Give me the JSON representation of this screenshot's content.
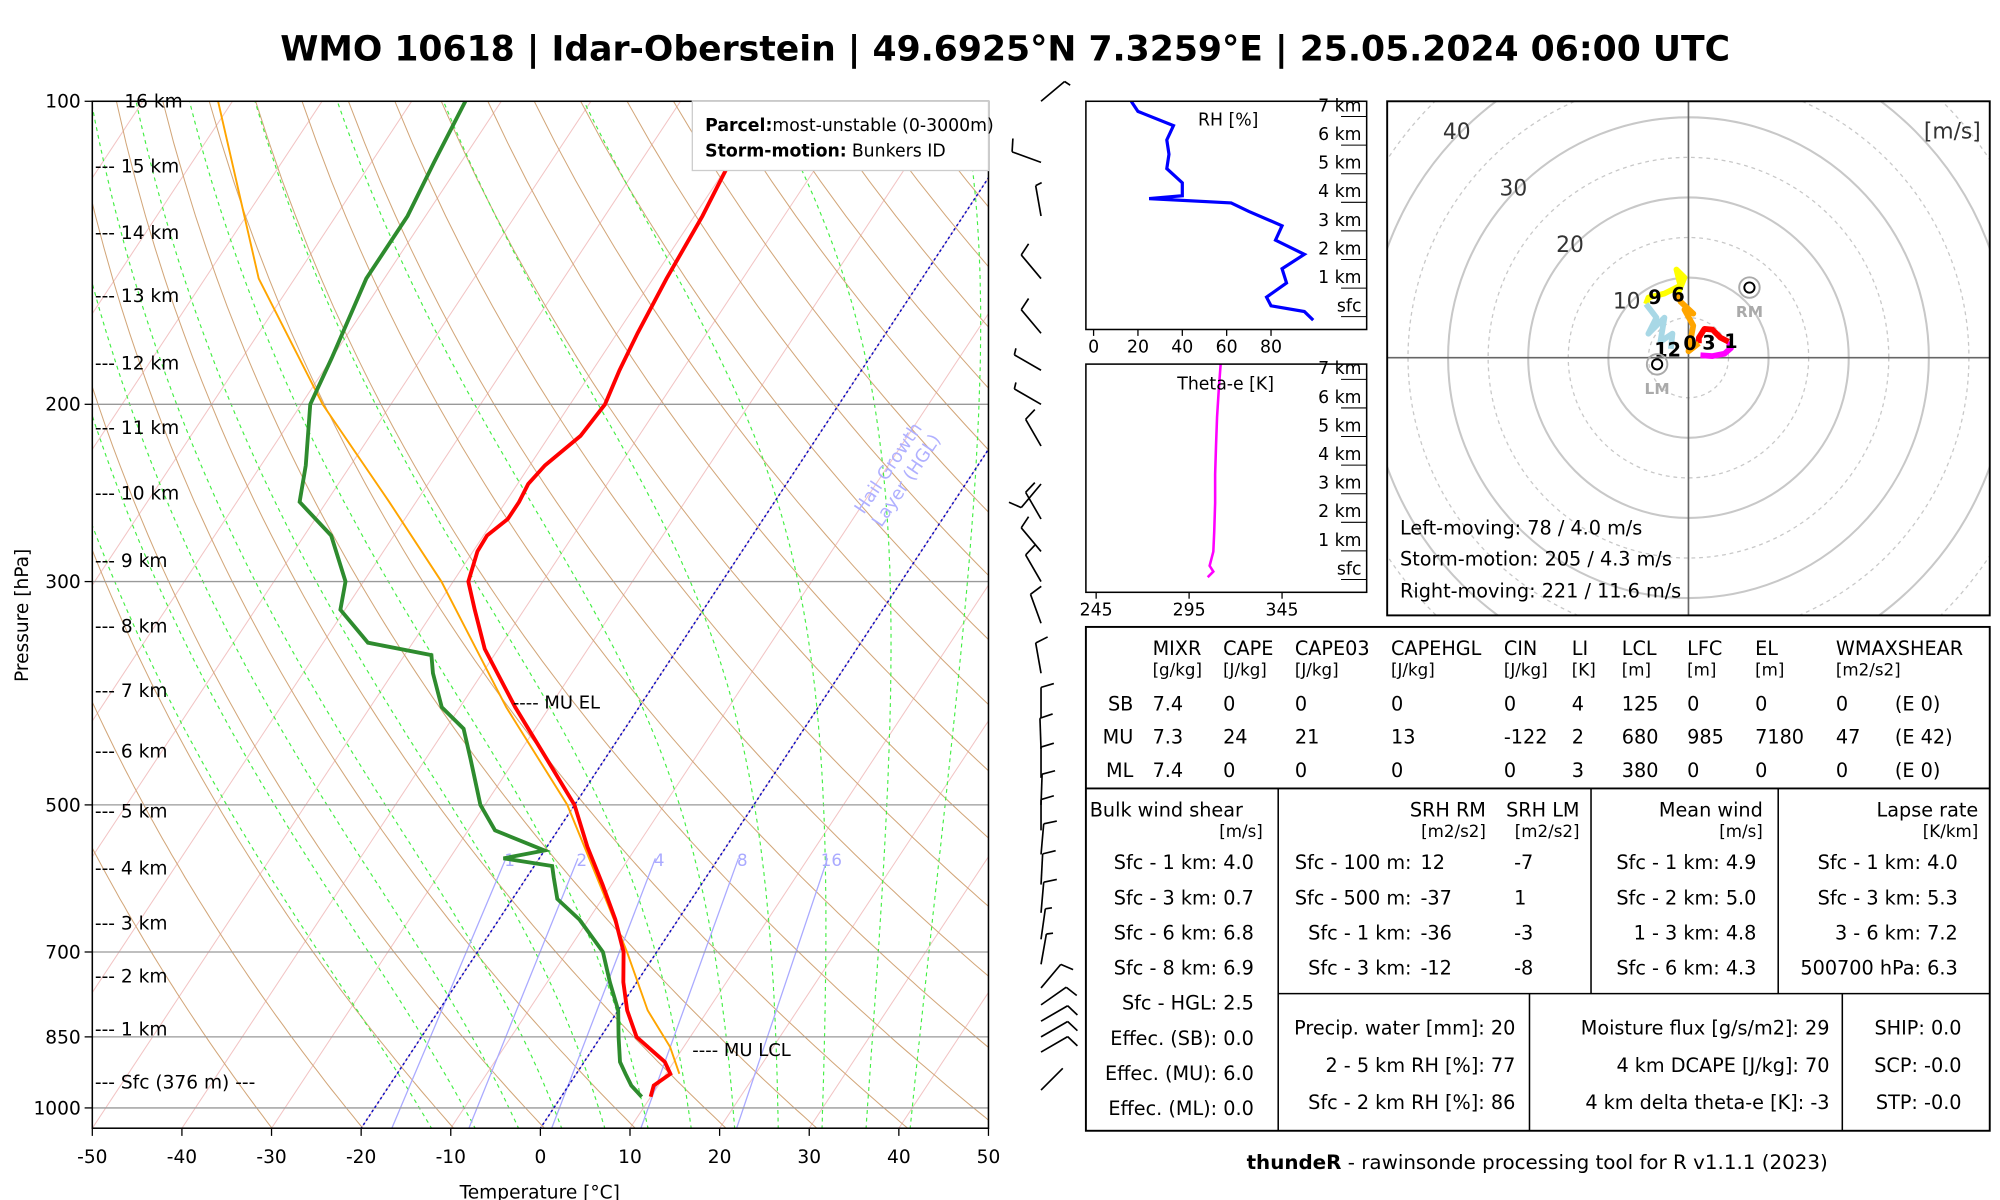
{
  "title": "WMO 10618 | Idar-Oberstein | 49.6925°N 7.3259°E | 25.05.2024 06:00 UTC",
  "footer": {
    "bold": "thundeR",
    "rest": " - rawinsonde processing tool for R v1.1.1 (2023)"
  },
  "colors": {
    "temperature": "#ff0000",
    "dewpoint": "#2e8b2e",
    "parcel": "#ffa500",
    "hgl": "#1010c0",
    "mixing": "#aaaaff",
    "dry": "#d2a679",
    "moist": "#44ee44",
    "iso": "#f2c4c4"
  },
  "chart_data": [
    {
      "type": "line",
      "name": "skew-t",
      "xlabel": "Temperature [°C]",
      "ylabel": "Pressure [hPa]",
      "xlim": [
        -50,
        50
      ],
      "ylim": [
        1048,
        100
      ],
      "x_ticks": [
        "-50",
        "-40",
        "-30",
        "-20",
        "-10",
        "0",
        "10",
        "20",
        "30",
        "40",
        "50"
      ],
      "y_ticks": [
        "100",
        "200",
        "300",
        "500",
        "700",
        "850",
        "1000"
      ],
      "height_labels": [
        {
          "p": 100,
          "text": "16 km"
        },
        {
          "p": 116,
          "text": "--- 15 km"
        },
        {
          "p": 135,
          "text": "--- 14 km"
        },
        {
          "p": 156,
          "text": "--- 13 km"
        },
        {
          "p": 182,
          "text": "--- 12 km"
        },
        {
          "p": 211,
          "text": "--- 11 km"
        },
        {
          "p": 245,
          "text": "--- 10 km"
        },
        {
          "p": 286,
          "text": "--- 9 km"
        },
        {
          "p": 332,
          "text": "--- 8 km"
        },
        {
          "p": 385,
          "text": "--- 7 km"
        },
        {
          "p": 442,
          "text": "--- 6 km"
        },
        {
          "p": 507,
          "text": "--- 5 km"
        },
        {
          "p": 578,
          "text": "--- 4 km"
        },
        {
          "p": 655,
          "text": "--- 3 km"
        },
        {
          "p": 740,
          "text": "--- 2 km"
        },
        {
          "p": 835,
          "text": "--- 1 km"
        },
        {
          "p": 943,
          "text": "--- Sfc (376 m) ---"
        }
      ],
      "temperature": [
        [
          975,
          10
        ],
        [
          950,
          9.5
        ],
        [
          925,
          10.5
        ],
        [
          900,
          9
        ],
        [
          850,
          4
        ],
        [
          800,
          1
        ],
        [
          750,
          -1.5
        ],
        [
          700,
          -3.7
        ],
        [
          650,
          -7
        ],
        [
          600,
          -11
        ],
        [
          550,
          -15.5
        ],
        [
          500,
          -20
        ],
        [
          450,
          -26.5
        ],
        [
          400,
          -33.8
        ],
        [
          350,
          -41.5
        ],
        [
          320,
          -45.5
        ],
        [
          300,
          -48.3
        ],
        [
          280,
          -49.5
        ],
        [
          270,
          -49.6
        ],
        [
          260,
          -48.5
        ],
        [
          250,
          -48.5
        ],
        [
          240,
          -48.8
        ],
        [
          230,
          -48.3
        ],
        [
          215,
          -46.5
        ],
        [
          200,
          -46.1
        ],
        [
          185,
          -47
        ],
        [
          170,
          -47.7
        ],
        [
          150,
          -48.5
        ],
        [
          130,
          -49.1
        ],
        [
          115,
          -50
        ],
        [
          100,
          -50.6
        ]
      ],
      "dewpoint": [
        [
          975,
          9
        ],
        [
          950,
          7
        ],
        [
          925,
          5.5
        ],
        [
          900,
          4
        ],
        [
          850,
          2
        ],
        [
          800,
          0
        ],
        [
          750,
          -3
        ],
        [
          700,
          -6
        ],
        [
          650,
          -11
        ],
        [
          620,
          -15
        ],
        [
          590,
          -17
        ],
        [
          575,
          -18
        ],
        [
          565,
          -24
        ],
        [
          555,
          -20
        ],
        [
          530,
          -27
        ],
        [
          500,
          -30.5
        ],
        [
          450,
          -35
        ],
        [
          420,
          -38
        ],
        [
          400,
          -42
        ],
        [
          370,
          -45.5
        ],
        [
          355,
          -47
        ],
        [
          345,
          -55
        ],
        [
          320,
          -60.5
        ],
        [
          300,
          -62
        ],
        [
          270,
          -67
        ],
        [
          250,
          -73
        ],
        [
          230,
          -75
        ],
        [
          200,
          -79
        ],
        [
          180,
          -80
        ],
        [
          150,
          -82
        ],
        [
          130,
          -82
        ],
        [
          115,
          -83
        ],
        [
          100,
          -84
        ]
      ],
      "parcel": [
        [
          925,
          11.5
        ],
        [
          870,
          8.5
        ],
        [
          800,
          3.3
        ],
        [
          700,
          -3.3
        ],
        [
          600,
          -11.3
        ],
        [
          500,
          -20.8
        ],
        [
          400,
          -34.8
        ],
        [
          300,
          -51.3
        ],
        [
          250,
          -63
        ],
        [
          200,
          -77.6
        ],
        [
          150,
          -94
        ],
        [
          100,
          -111.6
        ]
      ],
      "mixing_ratio_labels": [
        "1",
        "2",
        "4",
        "8",
        "16"
      ],
      "hgl_isotherms": [
        0,
        -20
      ],
      "hgl_label": [
        "Hail Growth",
        "Layer (HGL)"
      ],
      "annotations": [
        {
          "p": 395,
          "text": "---- MU EL"
        },
        {
          "p": 875,
          "text": "---- MU LCL"
        }
      ],
      "legend": {
        "parcel_label": "Parcel:",
        "parcel_value": "most-unstable (0-3000m)",
        "storm_label": "Storm-motion:",
        "storm_value": "Bunkers ID"
      },
      "wind_barbs": [
        [
          100,
          50,
          5
        ],
        [
          115,
          290,
          10
        ],
        [
          130,
          350,
          5
        ],
        [
          150,
          320,
          10
        ],
        [
          170,
          320,
          10
        ],
        [
          185,
          300,
          5
        ],
        [
          200,
          300,
          5
        ],
        [
          220,
          330,
          10
        ],
        [
          240,
          220,
          10
        ],
        [
          260,
          330,
          10
        ],
        [
          280,
          320,
          10
        ],
        [
          300,
          330,
          10
        ],
        [
          330,
          340,
          10
        ],
        [
          370,
          350,
          10
        ],
        [
          410,
          0,
          10
        ],
        [
          440,
          358,
          10
        ],
        [
          470,
          0,
          10
        ],
        [
          500,
          2,
          10
        ],
        [
          530,
          0,
          10
        ],
        [
          560,
          5,
          10
        ],
        [
          600,
          3,
          10
        ],
        [
          640,
          5,
          10
        ],
        [
          680,
          8,
          5
        ],
        [
          720,
          10,
          5
        ],
        [
          760,
          40,
          10
        ],
        [
          790,
          55,
          10
        ],
        [
          820,
          60,
          10
        ],
        [
          850,
          60,
          10
        ],
        [
          880,
          60,
          10
        ],
        [
          960,
          45,
          2
        ]
      ]
    },
    {
      "type": "line",
      "name": "rh-profile",
      "title": "RH [%]",
      "x_ticks": [
        "0",
        "20",
        "40",
        "60",
        "80"
      ],
      "height_ticks": [
        "7 km",
        "6 km",
        "5 km",
        "4 km",
        "3 km",
        "2 km",
        "1 km",
        "sfc"
      ],
      "points": [
        [
          7.35,
          17
        ],
        [
          7.0,
          20
        ],
        [
          6.5,
          36
        ],
        [
          6.0,
          33
        ],
        [
          5.5,
          34
        ],
        [
          5.0,
          33
        ],
        [
          4.5,
          40
        ],
        [
          4.05,
          40
        ],
        [
          3.95,
          25
        ],
        [
          3.8,
          62
        ],
        [
          3.5,
          70
        ],
        [
          3.0,
          85
        ],
        [
          2.5,
          82
        ],
        [
          2.0,
          95
        ],
        [
          1.5,
          85
        ],
        [
          1.0,
          87
        ],
        [
          0.5,
          78
        ],
        [
          0.2,
          80
        ],
        [
          0,
          95
        ],
        [
          -0.3,
          99
        ]
      ]
    },
    {
      "type": "line",
      "name": "theta-e-profile",
      "title": "Theta-e [K]",
      "x_ticks": [
        "245",
        "295",
        "345"
      ],
      "height_ticks": [
        "7 km",
        "6 km",
        "5 km",
        "4 km",
        "3 km",
        "2 km",
        "1 km",
        "sfc"
      ],
      "points": [
        [
          7.35,
          312
        ],
        [
          6.5,
          311
        ],
        [
          5.5,
          310
        ],
        [
          4.5,
          309.5
        ],
        [
          3.5,
          309
        ],
        [
          2.5,
          309
        ],
        [
          1.5,
          308.5
        ],
        [
          0.8,
          308
        ],
        [
          0.3,
          306
        ],
        [
          0.1,
          308
        ],
        [
          -0.1,
          305
        ]
      ]
    },
    {
      "type": "line",
      "name": "hodograph",
      "unit_label": "[m/s]",
      "ring_labels": [
        "10",
        "20",
        "30",
        "40"
      ],
      "segments": [
        {
          "color": "#ff00ff",
          "uv": [
            [
              1.5,
              0.3
            ],
            [
              3,
              0.2
            ],
            [
              4.5,
              0.5
            ],
            [
              5.3,
              1.2
            ],
            [
              5,
              2
            ]
          ]
        },
        {
          "color": "#ff0000",
          "uv": [
            [
              5,
              2
            ],
            [
              4,
              2.5
            ],
            [
              3,
              3.5
            ],
            [
              2,
              3.6
            ],
            [
              1.3,
              2.5
            ],
            [
              1.3,
              1.8
            ]
          ]
        },
        {
          "color": "#ffa500",
          "uv": [
            [
              1.3,
              1.8
            ],
            [
              0,
              0.8
            ],
            [
              0.6,
              4
            ],
            [
              -0.5,
              6
            ],
            [
              0.6,
              5.5
            ],
            [
              -1,
              7
            ],
            [
              -1.3,
              8
            ]
          ]
        },
        {
          "color": "#ffff00",
          "uv": [
            [
              -1.3,
              8
            ],
            [
              -0.5,
              10
            ],
            [
              -1.5,
              11
            ],
            [
              -1,
              9
            ],
            [
              -3,
              8
            ],
            [
              -5,
              7.5
            ],
            [
              -5.3,
              6.7
            ]
          ]
        },
        {
          "color": "#a8d8e6",
          "uv": [
            [
              -5.3,
              6.7
            ],
            [
              -4,
              5
            ],
            [
              -5,
              3
            ],
            [
              -3,
              5
            ],
            [
              -3.5,
              2
            ],
            [
              -2,
              3
            ],
            [
              -2.2,
              1.1
            ]
          ]
        }
      ],
      "height_labels": [
        {
          "text": "1",
          "uv": [
            5.3,
            2.2
          ]
        },
        {
          "text": "3",
          "uv": [
            1.6,
            2
          ]
        },
        {
          "text": "0",
          "uv": [
            1.0,
            1.9
          ]
        },
        {
          "text": "6",
          "uv": [
            -1.3,
            8
          ]
        },
        {
          "text": "9",
          "uv": [
            -5.3,
            6.7
          ]
        },
        {
          "text": "12",
          "uv": [
            -2.6,
            1.1
          ]
        }
      ],
      "rm": {
        "label": "RM",
        "dir": 221,
        "speed": 11.6
      },
      "lm": {
        "label": "LM",
        "dir": 78,
        "speed": 4.0
      },
      "stats": [
        "Left-moving: 78 / 4.0 m/s",
        "Storm-motion: 205 / 4.3 m/s",
        "Right-moving: 221 / 11.6 m/s"
      ]
    }
  ],
  "thermo_table": {
    "columns": [
      {
        "name": "MIXR",
        "unit": "[g/kg]"
      },
      {
        "name": "CAPE",
        "unit": "[J/kg]"
      },
      {
        "name": "CAPE03",
        "unit": "[J/kg]"
      },
      {
        "name": "CAPEHGL",
        "unit": "[J/kg]"
      },
      {
        "name": "CIN",
        "unit": "[J/kg]"
      },
      {
        "name": "LI",
        "unit": "[K]"
      },
      {
        "name": "LCL",
        "unit": "[m]"
      },
      {
        "name": "LFC",
        "unit": "[m]"
      },
      {
        "name": "EL",
        "unit": "[m]"
      },
      {
        "name": "WMAXSHEAR",
        "unit": "[m2/s2]"
      }
    ],
    "rows": [
      {
        "label": "SB",
        "values": [
          "7.4",
          "0",
          "0",
          "0",
          "0",
          "4",
          "125",
          "0",
          "0",
          "0",
          "(E 0)"
        ]
      },
      {
        "label": "MU",
        "values": [
          "7.3",
          "24",
          "21",
          "13",
          "-122",
          "2",
          "680",
          "985",
          "7180",
          "47",
          "(E 42)"
        ]
      },
      {
        "label": "ML",
        "values": [
          "7.4",
          "0",
          "0",
          "0",
          "0",
          "3",
          "380",
          "0",
          "0",
          "0",
          "(E 0)"
        ]
      }
    ]
  },
  "bulk_shear": {
    "title": "Bulk wind shear",
    "unit": "[m/s]",
    "rows": [
      {
        "label": "Sfc - 1 km: ",
        "value": "4.0"
      },
      {
        "label": "Sfc - 3 km: ",
        "value": "0.7"
      },
      {
        "label": "Sfc - 6 km: ",
        "value": "6.8"
      },
      {
        "label": "Sfc - 8 km: ",
        "value": "6.9"
      },
      {
        "label": "Sfc - HGL: ",
        "value": "2.5"
      },
      {
        "label": "Effec. (SB): ",
        "value": "0.0"
      },
      {
        "label": "Effec. (MU): ",
        "value": "6.0"
      },
      {
        "label": "Effec. (ML): ",
        "value": "0.0"
      }
    ]
  },
  "srh": {
    "title_rm": "SRH RM",
    "title_lm": "SRH LM",
    "unit_rm": "[m2/s2]",
    "unit_lm": "[m2/s2]",
    "rows": [
      {
        "label": "Sfc - 100 m:",
        "rm": "12",
        "lm": "-7"
      },
      {
        "label": "Sfc - 500 m:",
        "rm": "-37",
        "lm": "1"
      },
      {
        "label": "Sfc - 1 km:",
        "rm": "-36",
        "lm": "-3"
      },
      {
        "label": "Sfc - 3 km:",
        "rm": "-12",
        "lm": "-8"
      }
    ]
  },
  "mean_wind": {
    "title": "Mean wind",
    "unit": "[m/s]",
    "rows": [
      {
        "label": "Sfc - 1 km: ",
        "value": "4.9"
      },
      {
        "label": "Sfc - 2 km: ",
        "value": "5.0"
      },
      {
        "label": "1 - 3 km: ",
        "value": "4.8"
      },
      {
        "label": "Sfc - 6 km: ",
        "value": "4.3"
      }
    ]
  },
  "lapse_rate": {
    "title": "Lapse rate",
    "unit": "[K/km]",
    "rows": [
      {
        "label": "Sfc - 1 km: ",
        "value": "4.0"
      },
      {
        "label": "Sfc - 3 km: ",
        "value": "5.3"
      },
      {
        "label": "3 - 6 km: ",
        "value": "7.2"
      },
      {
        "label": "500700 hPa: ",
        "value": "6.3"
      }
    ]
  },
  "moisture": {
    "rows": [
      {
        "label": "Precip. water [mm]: ",
        "value": "20"
      },
      {
        "label": "2 - 5 km RH [%]: ",
        "value": "77"
      },
      {
        "label": "Sfc - 2 km RH [%]: ",
        "value": "86"
      }
    ]
  },
  "flux": {
    "rows": [
      {
        "label": "Moisture flux [g/s/m2]: ",
        "value": "29"
      },
      {
        "label": "4 km DCAPE [J/kg]: ",
        "value": "70"
      },
      {
        "label": "4 km delta theta-e [K]: ",
        "value": "-3"
      }
    ]
  },
  "composite": {
    "rows": [
      {
        "label": "SHIP: ",
        "value": "0.0"
      },
      {
        "label": "SCP: ",
        "value": "-0.0"
      },
      {
        "label": "STP: ",
        "value": "-0.0"
      }
    ]
  }
}
